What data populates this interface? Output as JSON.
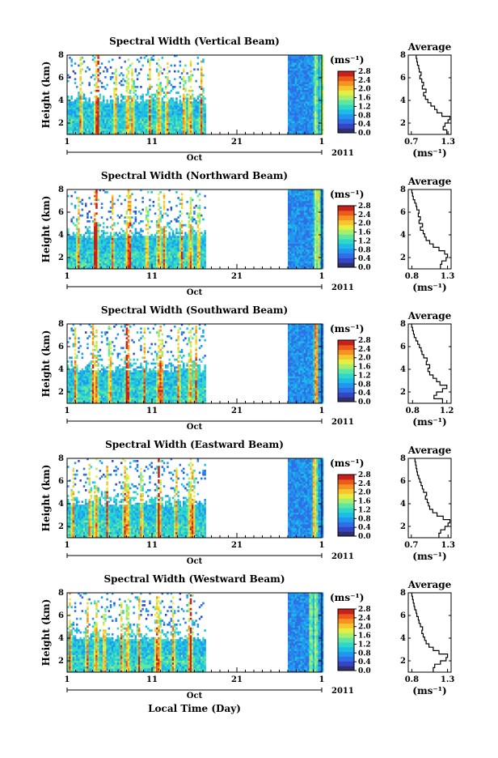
{
  "figure": {
    "bottom_xlabel": "Local Time (Day)",
    "colormap": [
      "#30306f",
      "#3545c8",
      "#2f6fe6",
      "#2196ee",
      "#1bbce6",
      "#30d7c8",
      "#5fe6a2",
      "#a6ee6b",
      "#e6ee44",
      "#f7c52e",
      "#f59222",
      "#ec5a1c",
      "#c8201a"
    ]
  },
  "chart_data": [
    {
      "type": "heatmap",
      "title": "Spectral Width (Vertical Beam)",
      "ylabel": "Height (km)",
      "ylim": [
        1,
        8
      ],
      "yticks": [
        "2",
        "4",
        "6",
        "8"
      ],
      "xticks": [
        "1",
        "11",
        "21",
        "1"
      ],
      "month_label": "Oct",
      "year_label": "2011",
      "data_days": [
        [
          1,
          17
        ],
        [
          27,
          31
        ]
      ],
      "unit_label": "(ms⁻¹)",
      "colorbar_ticks": [
        "0.0",
        "0.4",
        "0.8",
        "1.2",
        "1.6",
        "2.0",
        "2.4",
        "2.8"
      ],
      "colorbar_range": [
        0,
        2.8
      ],
      "average_profile": {
        "title": "Average",
        "xticks": [
          "0.7",
          "1.3"
        ],
        "xlim": [
          0.65,
          1.35
        ],
        "unit_label": "(ms⁻¹)",
        "yticks": [
          "2",
          "4",
          "6",
          "8"
        ],
        "height": [
          1.1,
          1.4,
          1.7,
          2.0,
          2.3,
          2.6,
          2.9,
          3.2,
          3.5,
          3.8,
          4.1,
          4.4,
          4.7,
          5.0,
          5.3,
          5.6,
          5.9,
          6.2,
          6.5,
          6.8,
          7.1,
          7.4,
          7.7
        ],
        "values": [
          1.28,
          1.22,
          1.25,
          1.3,
          1.33,
          1.2,
          1.12,
          1.08,
          1.02,
          0.97,
          0.93,
          0.9,
          0.94,
          0.88,
          0.9,
          0.87,
          0.84,
          0.86,
          0.83,
          0.82,
          0.8,
          0.79,
          0.78
        ]
      }
    },
    {
      "type": "heatmap",
      "title": "Spectral Width (Northward Beam)",
      "ylabel": "Height (km)",
      "ylim": [
        1,
        8
      ],
      "yticks": [
        "2",
        "4",
        "6",
        "8"
      ],
      "xticks": [
        "1",
        "11",
        "21",
        "1"
      ],
      "month_label": "Oct",
      "year_label": "2011",
      "data_days": [
        [
          1,
          17
        ],
        [
          27,
          31
        ]
      ],
      "unit_label": "(ms⁻¹)",
      "colorbar_ticks": [
        "0.0",
        "0.4",
        "0.8",
        "1.2",
        "1.6",
        "2.0",
        "2.4",
        "2.8"
      ],
      "colorbar_range": [
        0,
        2.8
      ],
      "average_profile": {
        "title": "Average",
        "xticks": [
          "0.8",
          "1.3"
        ],
        "xlim": [
          0.75,
          1.35
        ],
        "unit_label": "(ms⁻¹)",
        "yticks": [
          "2",
          "4",
          "6",
          "8"
        ],
        "height": [
          1.1,
          1.4,
          1.7,
          2.0,
          2.3,
          2.6,
          2.9,
          3.2,
          3.5,
          3.8,
          4.1,
          4.4,
          4.7,
          5.0,
          5.3,
          5.6,
          5.9,
          6.2,
          6.5,
          6.8,
          7.1,
          7.4,
          7.7
        ],
        "values": [
          1.2,
          1.22,
          1.28,
          1.3,
          1.26,
          1.18,
          1.1,
          1.05,
          1.0,
          0.98,
          0.96,
          0.92,
          0.95,
          0.9,
          0.92,
          0.89,
          0.9,
          0.87,
          0.86,
          0.84,
          0.82,
          0.81,
          0.8
        ]
      }
    },
    {
      "type": "heatmap",
      "title": "Spectral Width (Southward Beam)",
      "ylabel": "Height (km)",
      "ylim": [
        1,
        8
      ],
      "yticks": [
        "2",
        "4",
        "6",
        "8"
      ],
      "xticks": [
        "1",
        "11",
        "21",
        "1"
      ],
      "month_label": "Oct",
      "year_label": "2011",
      "data_days": [
        [
          1,
          17
        ],
        [
          27,
          31
        ]
      ],
      "unit_label": "(ms⁻¹)",
      "colorbar_ticks": [
        "0.0",
        "0.4",
        "0.8",
        "1.2",
        "1.6",
        "2.0",
        "2.4",
        "2.8"
      ],
      "colorbar_range": [
        0,
        2.8
      ],
      "average_profile": {
        "title": "Average",
        "xticks": [
          "0.8",
          "1.2"
        ],
        "xlim": [
          0.75,
          1.25
        ],
        "unit_label": "(ms⁻¹)",
        "yticks": [
          "2",
          "4",
          "6",
          "8"
        ],
        "height": [
          1.1,
          1.4,
          1.7,
          2.0,
          2.3,
          2.6,
          2.9,
          3.2,
          3.5,
          3.8,
          4.1,
          4.4,
          4.7,
          5.0,
          5.3,
          5.6,
          5.9,
          6.2,
          6.5,
          6.8,
          7.1,
          7.4,
          7.7
        ],
        "values": [
          1.15,
          1.05,
          1.08,
          1.15,
          1.2,
          1.12,
          1.08,
          1.04,
          1.0,
          0.98,
          1.0,
          0.96,
          0.97,
          0.93,
          0.91,
          0.9,
          0.88,
          0.86,
          0.84,
          0.82,
          0.81,
          0.8,
          0.79
        ]
      }
    },
    {
      "type": "heatmap",
      "title": "Spectral Width (Eastward Beam)",
      "ylabel": "Height (km)",
      "ylim": [
        1,
        8
      ],
      "yticks": [
        "2",
        "4",
        "6",
        "8"
      ],
      "xticks": [
        "1",
        "11",
        "21",
        "1"
      ],
      "month_label": "Oct",
      "year_label": "2011",
      "data_days": [
        [
          1,
          17
        ],
        [
          27,
          31
        ]
      ],
      "unit_label": "(ms⁻¹)",
      "colorbar_ticks": [
        "0.0",
        "0.4",
        "0.8",
        "1.2",
        "1.6",
        "2.0",
        "2.4",
        "2.8"
      ],
      "colorbar_range": [
        0,
        2.8
      ],
      "average_profile": {
        "title": "Average",
        "xticks": [
          "0.7",
          "1.3"
        ],
        "xlim": [
          0.65,
          1.35
        ],
        "unit_label": "(ms⁻¹)",
        "yticks": [
          "2",
          "4",
          "6",
          "8"
        ],
        "height": [
          1.1,
          1.4,
          1.7,
          2.0,
          2.3,
          2.6,
          2.9,
          3.2,
          3.5,
          3.8,
          4.1,
          4.4,
          4.7,
          5.0,
          5.3,
          5.6,
          5.9,
          6.2,
          6.5,
          6.8,
          7.1,
          7.4,
          7.7
        ],
        "values": [
          1.15,
          1.18,
          1.25,
          1.3,
          1.33,
          1.22,
          1.12,
          1.05,
          1.0,
          0.98,
          0.96,
          0.93,
          0.95,
          0.9,
          0.88,
          0.86,
          0.84,
          0.82,
          0.8,
          0.79,
          0.78,
          0.77,
          0.76
        ]
      }
    },
    {
      "type": "heatmap",
      "title": "Spectral Width (Westward Beam)",
      "ylabel": "Height (km)",
      "ylim": [
        1,
        8
      ],
      "yticks": [
        "2",
        "4",
        "6",
        "8"
      ],
      "xticks": [
        "1",
        "11",
        "21",
        "1"
      ],
      "month_label": "Oct",
      "year_label": "2011",
      "data_days": [
        [
          1,
          17
        ],
        [
          27,
          31
        ]
      ],
      "unit_label": "(ms⁻¹)",
      "colorbar_ticks": [
        "0.0",
        "0.4",
        "0.8",
        "1.2",
        "1.6",
        "2.0",
        "2.4",
        "2.8"
      ],
      "colorbar_range": [
        0,
        2.8
      ],
      "average_profile": {
        "title": "Average",
        "xticks": [
          "0.8",
          "1.3"
        ],
        "xlim": [
          0.75,
          1.35
        ],
        "unit_label": "(ms⁻¹)",
        "yticks": [
          "2",
          "4",
          "6",
          "8"
        ],
        "height": [
          1.1,
          1.4,
          1.7,
          2.0,
          2.3,
          2.6,
          2.9,
          3.2,
          3.5,
          3.8,
          4.1,
          4.4,
          4.7,
          5.0,
          5.3,
          5.6,
          5.9,
          6.2,
          6.5,
          6.8,
          7.1,
          7.4,
          7.7
        ],
        "values": [
          1.1,
          1.12,
          1.2,
          1.28,
          1.3,
          1.18,
          1.1,
          1.04,
          1.0,
          0.98,
          0.96,
          0.94,
          0.95,
          0.92,
          0.9,
          0.89,
          0.87,
          0.86,
          0.84,
          0.83,
          0.82,
          0.81,
          0.8
        ]
      }
    }
  ]
}
